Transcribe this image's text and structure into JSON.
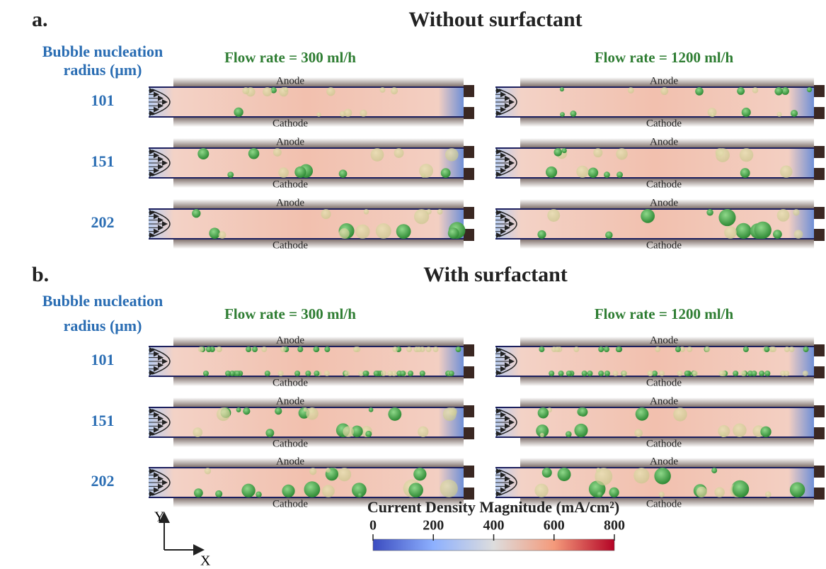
{
  "panels": [
    {
      "label": "a.",
      "title": "Without surfactant",
      "row_header": [
        "Bubble nucleation",
        "radius (μm)"
      ],
      "columns": [
        "Flow rate = 300 ml/h",
        "Flow rate = 1200 ml/h"
      ],
      "rows": [
        "101",
        "151",
        "202"
      ],
      "channel_labels": {
        "top": "Anode",
        "bottom": "Cathode"
      }
    },
    {
      "label": "b.",
      "title": "With surfactant",
      "row_header": [
        "Bubble nucleation",
        "radius (μm)"
      ],
      "columns": [
        "Flow rate = 300 ml/h",
        "Flow rate = 1200 ml/h"
      ],
      "rows": [
        "101",
        "151",
        "202"
      ],
      "channel_labels": {
        "top": "Anode",
        "bottom": "Cathode"
      }
    }
  ],
  "colorbar": {
    "title": "Current Density Magnitude (mA/cm²)",
    "lim": [
      0,
      800
    ],
    "ticks": [
      0,
      200,
      400,
      600,
      800
    ]
  },
  "axes": {
    "y": "Y",
    "x": "X"
  }
}
